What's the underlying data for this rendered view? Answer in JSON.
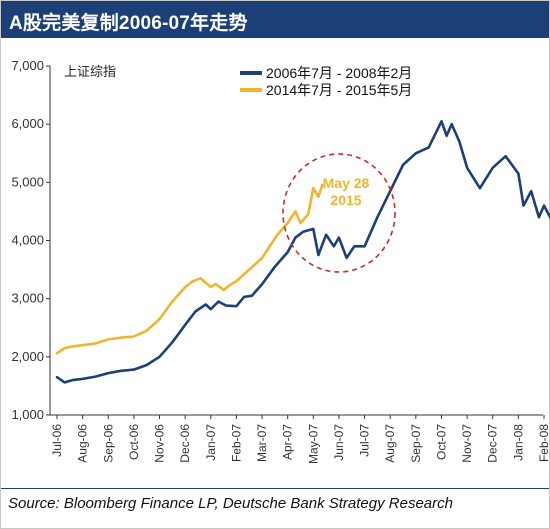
{
  "header": {
    "title": "A股完美复制2006-07年走势"
  },
  "source": "Source: Bloomberg Finance LP, Deutsche Bank Strategy Research",
  "chart_data": {
    "type": "line",
    "ylabel": "上证综指",
    "ylim": [
      1000,
      7000
    ],
    "yticks": [
      1000,
      2000,
      3000,
      4000,
      5000,
      6000,
      7000
    ],
    "ytick_labels": [
      "1,000",
      "2,000",
      "3,000",
      "4,000",
      "5,000",
      "6,000",
      "7,000"
    ],
    "x_categories": [
      "Jul-06",
      "Aug-06",
      "Sep-06",
      "Oct-06",
      "Nov-06",
      "Dec-06",
      "Jan-07",
      "Feb-07",
      "Mar-07",
      "Apr-07",
      "May-07",
      "Jun-07",
      "Jul-07",
      "Aug-07",
      "Sep-07",
      "Oct-07",
      "Nov-07",
      "Dec-07",
      "Jan-08",
      "Feb-08"
    ],
    "grid": false,
    "legend_position": "top-center",
    "annotation": {
      "line1": "May 28",
      "line2": "2015"
    },
    "series": [
      {
        "name": "2006年7月 - 2008年2月",
        "color": "#1c3f78",
        "x": [
          0,
          0.3,
          0.6,
          1.0,
          1.5,
          2.0,
          2.5,
          3.0,
          3.5,
          4.0,
          4.5,
          5.0,
          5.4,
          5.8,
          6.0,
          6.3,
          6.6,
          7.0,
          7.3,
          7.6,
          8.0,
          8.5,
          9.0,
          9.3,
          9.6,
          10.0,
          10.2,
          10.5,
          10.8,
          11.0,
          11.3,
          11.6,
          12.0,
          12.5,
          13.0,
          13.5,
          14.0,
          14.5,
          15.0,
          15.2,
          15.4,
          15.7,
          16.0,
          16.5,
          17.0,
          17.5,
          18.0,
          18.2,
          18.5,
          18.8,
          19.0,
          19.3
        ],
        "values": [
          1650,
          1560,
          1600,
          1620,
          1660,
          1720,
          1760,
          1780,
          1860,
          2000,
          2250,
          2550,
          2780,
          2900,
          2820,
          2950,
          2880,
          2870,
          3030,
          3050,
          3250,
          3550,
          3800,
          4050,
          4150,
          4200,
          3750,
          4100,
          3900,
          4050,
          3700,
          3900,
          3900,
          4400,
          4850,
          5300,
          5500,
          5600,
          6050,
          5800,
          6000,
          5700,
          5250,
          4900,
          5250,
          5450,
          5150,
          4600,
          4850,
          4400,
          4600,
          4350
        ]
      },
      {
        "name": "2014年7月 - 2015年5月",
        "color": "#f0b42d",
        "x": [
          0,
          0.3,
          0.6,
          1.0,
          1.5,
          2.0,
          2.5,
          3.0,
          3.5,
          4.0,
          4.5,
          5.0,
          5.3,
          5.6,
          6.0,
          6.2,
          6.5,
          6.8,
          7.0,
          7.5,
          8.0,
          8.3,
          8.6,
          9.0,
          9.3,
          9.5,
          9.8,
          10.0,
          10.2,
          10.35
        ],
        "values": [
          2060,
          2150,
          2180,
          2200,
          2230,
          2300,
          2330,
          2350,
          2450,
          2650,
          2950,
          3200,
          3300,
          3350,
          3200,
          3250,
          3150,
          3250,
          3300,
          3500,
          3700,
          3900,
          4100,
          4300,
          4500,
          4300,
          4450,
          4900,
          4750,
          4950
        ]
      }
    ]
  }
}
